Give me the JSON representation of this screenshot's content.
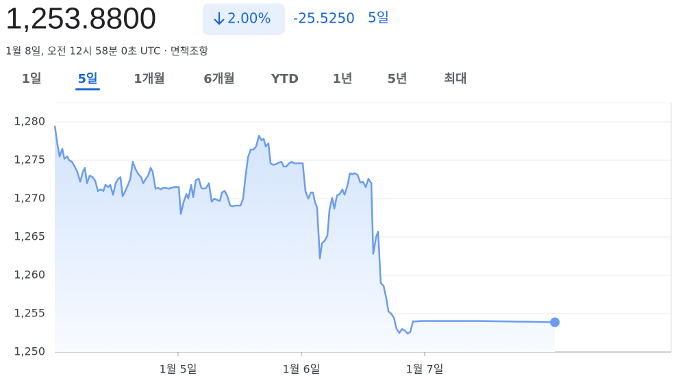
{
  "header": {
    "price": "1,253.8800",
    "change_pct": "2.00%",
    "change": "-25.5250",
    "period": "5일",
    "timestamp": "1월 8일, 오전 12시 58분 0초 UTC · 면책조항"
  },
  "tabs": {
    "items": [
      "1일",
      "5일",
      "1개월",
      "6개월",
      "YTD",
      "1년",
      "5년",
      "최대"
    ],
    "selected": 1
  },
  "chart_data": {
    "type": "line",
    "color": "#6b9cef",
    "grid": true,
    "x": [
      4.0,
      4.022,
      4.039,
      4.061,
      4.078,
      4.1,
      4.117,
      4.139,
      4.161,
      4.183,
      4.206,
      4.228,
      4.244,
      4.261,
      4.283,
      4.306,
      4.328,
      4.35,
      4.372,
      4.394,
      4.411,
      4.433,
      4.45,
      4.472,
      4.494,
      4.511,
      4.533,
      4.55,
      4.572,
      4.594,
      4.611,
      4.633,
      4.656,
      4.678,
      4.7,
      4.717,
      4.739,
      4.756,
      4.778,
      4.794,
      4.817,
      4.839,
      4.861,
      4.878,
      4.9,
      4.922,
      4.944,
      4.967,
      4.983,
      5.006,
      5.022,
      5.044,
      5.067,
      5.083,
      5.106,
      5.122,
      5.144,
      5.167,
      5.189,
      5.206,
      5.228,
      5.25,
      5.272,
      5.294,
      5.317,
      5.339,
      5.356,
      5.378,
      5.4,
      5.422,
      5.444,
      5.467,
      5.489,
      5.506,
      5.528,
      5.544,
      5.567,
      5.589,
      5.611,
      5.633,
      5.656,
      5.678,
      5.694,
      5.711,
      5.733,
      5.75,
      5.772,
      5.794,
      5.817,
      5.839,
      5.856,
      5.878,
      5.9,
      5.922,
      5.944,
      5.967,
      5.989,
      6.011,
      6.033,
      6.056,
      6.078,
      6.094,
      6.111,
      6.128,
      6.15,
      6.167,
      6.189,
      6.211,
      6.228,
      6.25,
      6.267,
      6.289,
      6.311,
      6.333,
      6.35,
      6.372,
      6.394,
      6.411,
      6.433,
      6.456,
      6.478,
      6.5,
      6.522,
      6.544,
      6.567,
      6.583,
      6.606,
      6.622,
      6.644,
      6.667,
      6.689,
      6.706,
      6.728,
      6.75,
      6.772,
      6.794,
      6.817,
      6.839,
      6.861,
      6.883,
      6.906,
      6.928,
      6.978,
      7.444,
      8.056
    ],
    "values": [
      1279.5,
      1277,
      1275.5,
      1276.5,
      1275.2,
      1275.5,
      1275,
      1274.8,
      1274.2,
      1273.5,
      1272.2,
      1273.5,
      1274,
      1272,
      1273,
      1272.8,
      1272.3,
      1271,
      1271.2,
      1271,
      1271.8,
      1271.5,
      1271.8,
      1270.5,
      1272,
      1272.5,
      1272.8,
      1270.3,
      1271,
      1271.8,
      1272.5,
      1274.8,
      1273.8,
      1273.2,
      1272.8,
      1272,
      1272.6,
      1273,
      1274,
      1273.5,
      1271.3,
      1271.4,
      1271.2,
      1271.4,
      1271.4,
      1271.3,
      1271.4,
      1271.5,
      1271.5,
      1271.5,
      1268,
      1269.5,
      1270.6,
      1270,
      1271.8,
      1270.2,
      1272.4,
      1272.6,
      1271.4,
      1271.3,
      1271.4,
      1272,
      1269.6,
      1270,
      1269.8,
      1269.7,
      1270.8,
      1271,
      1270.3,
      1269.1,
      1269,
      1269.1,
      1269.1,
      1269.1,
      1270,
      1272.5,
      1275.4,
      1276.4,
      1276.4,
      1276.8,
      1278.2,
      1277.6,
      1277.8,
      1276.8,
      1277.2,
      1274.6,
      1274.4,
      1274.5,
      1274.7,
      1274.8,
      1274.2,
      1274.2,
      1274.6,
      1274.8,
      1274.6,
      1274.6,
      1274.6,
      1274.6,
      1271,
      1270,
      1270.8,
      1270.8,
      1269.5,
      1268.8,
      1262.2,
      1264.2,
      1264.5,
      1265.2,
      1268.5,
      1270.1,
      1268.7,
      1270.4,
      1270.6,
      1271.2,
      1270.5,
      1271.6,
      1273.3,
      1273.2,
      1273.3,
      1273.1,
      1272.1,
      1272.2,
      1271.5,
      1272.6,
      1272,
      1262.8,
      1265,
      1265.7,
      1259,
      1258.6,
      1257,
      1255.3,
      1255,
      1254.5,
      1253,
      1252.5,
      1253,
      1252.8,
      1252.4,
      1252.6,
      1254,
      1254,
      1254.05,
      1254.05,
      1253.88
    ],
    "xlim": [
      4,
      9
    ],
    "xticks": [
      {
        "value": 5,
        "label": "1월 5일"
      },
      {
        "value": 6,
        "label": "1월 6일"
      },
      {
        "value": 7,
        "label": "1월 7일"
      }
    ],
    "ylim": [
      1250,
      1282.5
    ],
    "yticks": [
      {
        "value": 1250,
        "label": "1,250"
      },
      {
        "value": 1255,
        "label": "1,255"
      },
      {
        "value": 1260,
        "label": "1,260"
      },
      {
        "value": 1265,
        "label": "1,265"
      },
      {
        "value": 1270,
        "label": "1,270"
      },
      {
        "value": 1275,
        "label": "1,275"
      },
      {
        "value": 1280,
        "label": "1,280"
      }
    ]
  }
}
